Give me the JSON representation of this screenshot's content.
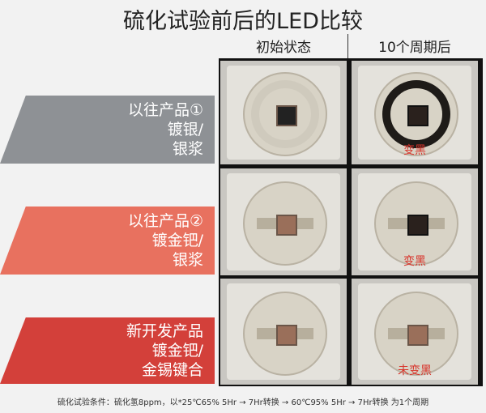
{
  "title": "硫化试验前后的LED比较",
  "columns": [
    "初始状态",
    "10个周期后"
  ],
  "rows": [
    {
      "lines": [
        "以往产品①",
        "镀银/",
        "银浆"
      ],
      "color": "#8e9195",
      "result": "变黑"
    },
    {
      "lines": [
        "以往产品②",
        "镀金钯/",
        "银浆"
      ],
      "color": "#e8715f",
      "result": "变黑"
    },
    {
      "lines": [
        "新开发产品",
        "镀金钯/",
        "金锡键合"
      ],
      "color": "#d3403a",
      "result": "未变黑"
    }
  ],
  "footer": "硫化试验条件：硫化氢8ppm，以*25℃65% 5Hr → 7Hr转换 → 60℃95% 5Hr → 7Hr转换 为1个周期"
}
